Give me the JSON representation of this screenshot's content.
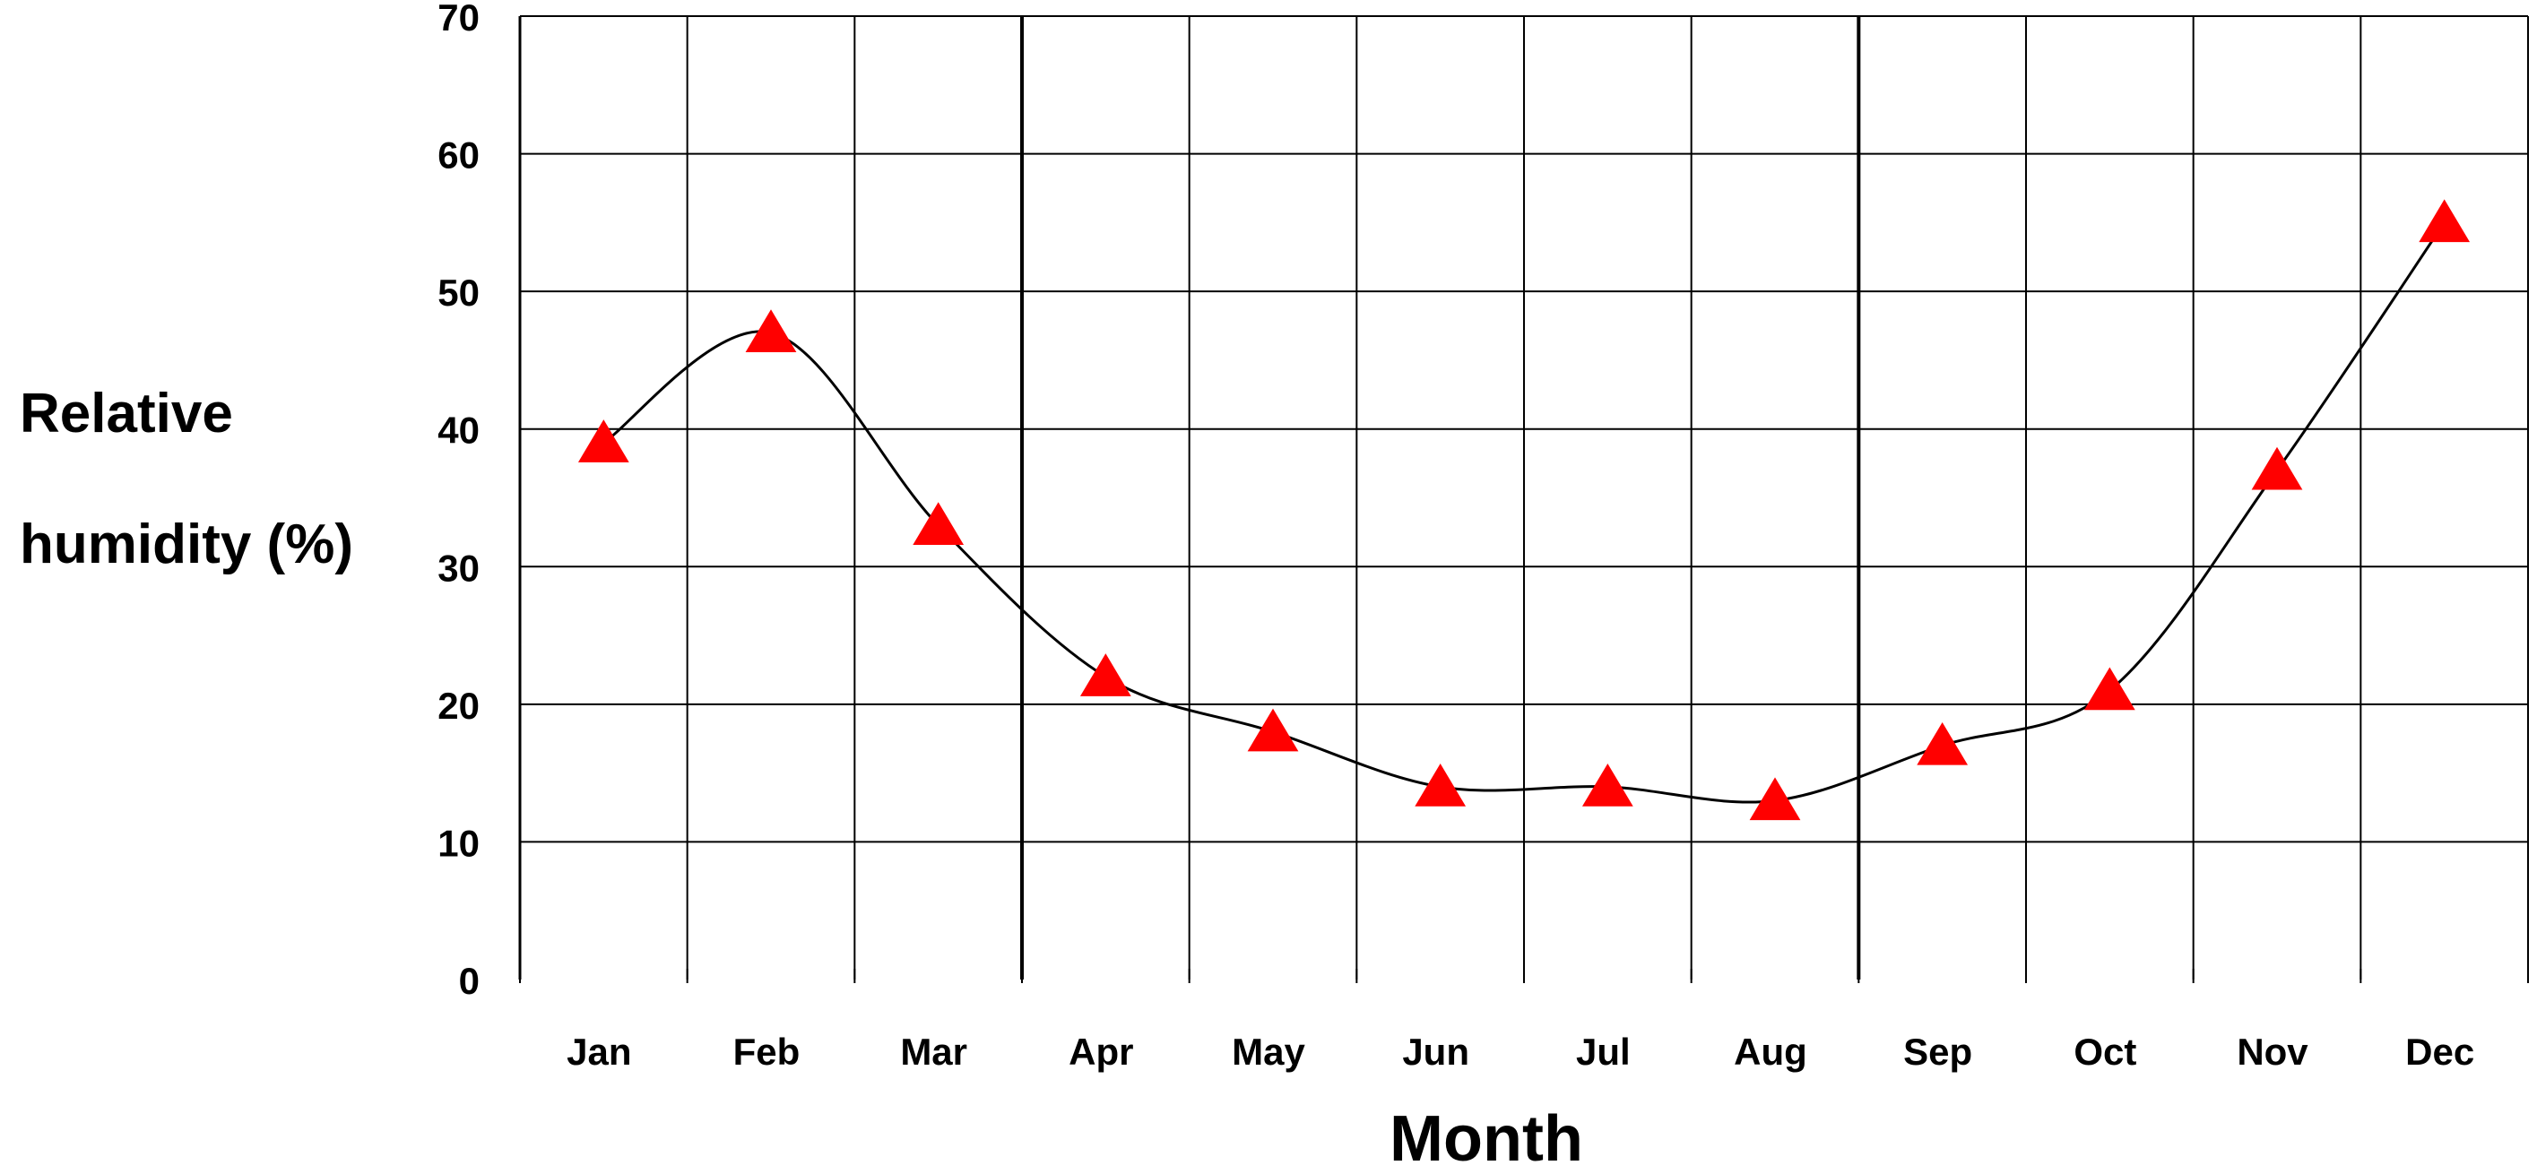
{
  "chart_data": {
    "type": "line",
    "title": "",
    "xlabel": "Month",
    "ylabel_lines": [
      "Relative",
      "humidity (%)"
    ],
    "categories": [
      "Jan",
      "Feb",
      "Mar",
      "Apr",
      "May",
      "Jun",
      "Jul",
      "Aug",
      "Sep",
      "Oct",
      "Nov",
      "Dec"
    ],
    "series": [
      {
        "values": [
          39,
          47,
          33,
          22,
          18,
          14,
          14,
          13,
          17,
          21,
          37,
          55
        ],
        "line_color": "#000000",
        "marker": "triangle",
        "marker_color": "#ff0000"
      }
    ],
    "ylim": [
      0,
      70
    ],
    "yticks": [
      "0",
      "10",
      "20",
      "30",
      "40",
      "50",
      "60",
      "70"
    ],
    "grid": true,
    "legend": "none"
  }
}
